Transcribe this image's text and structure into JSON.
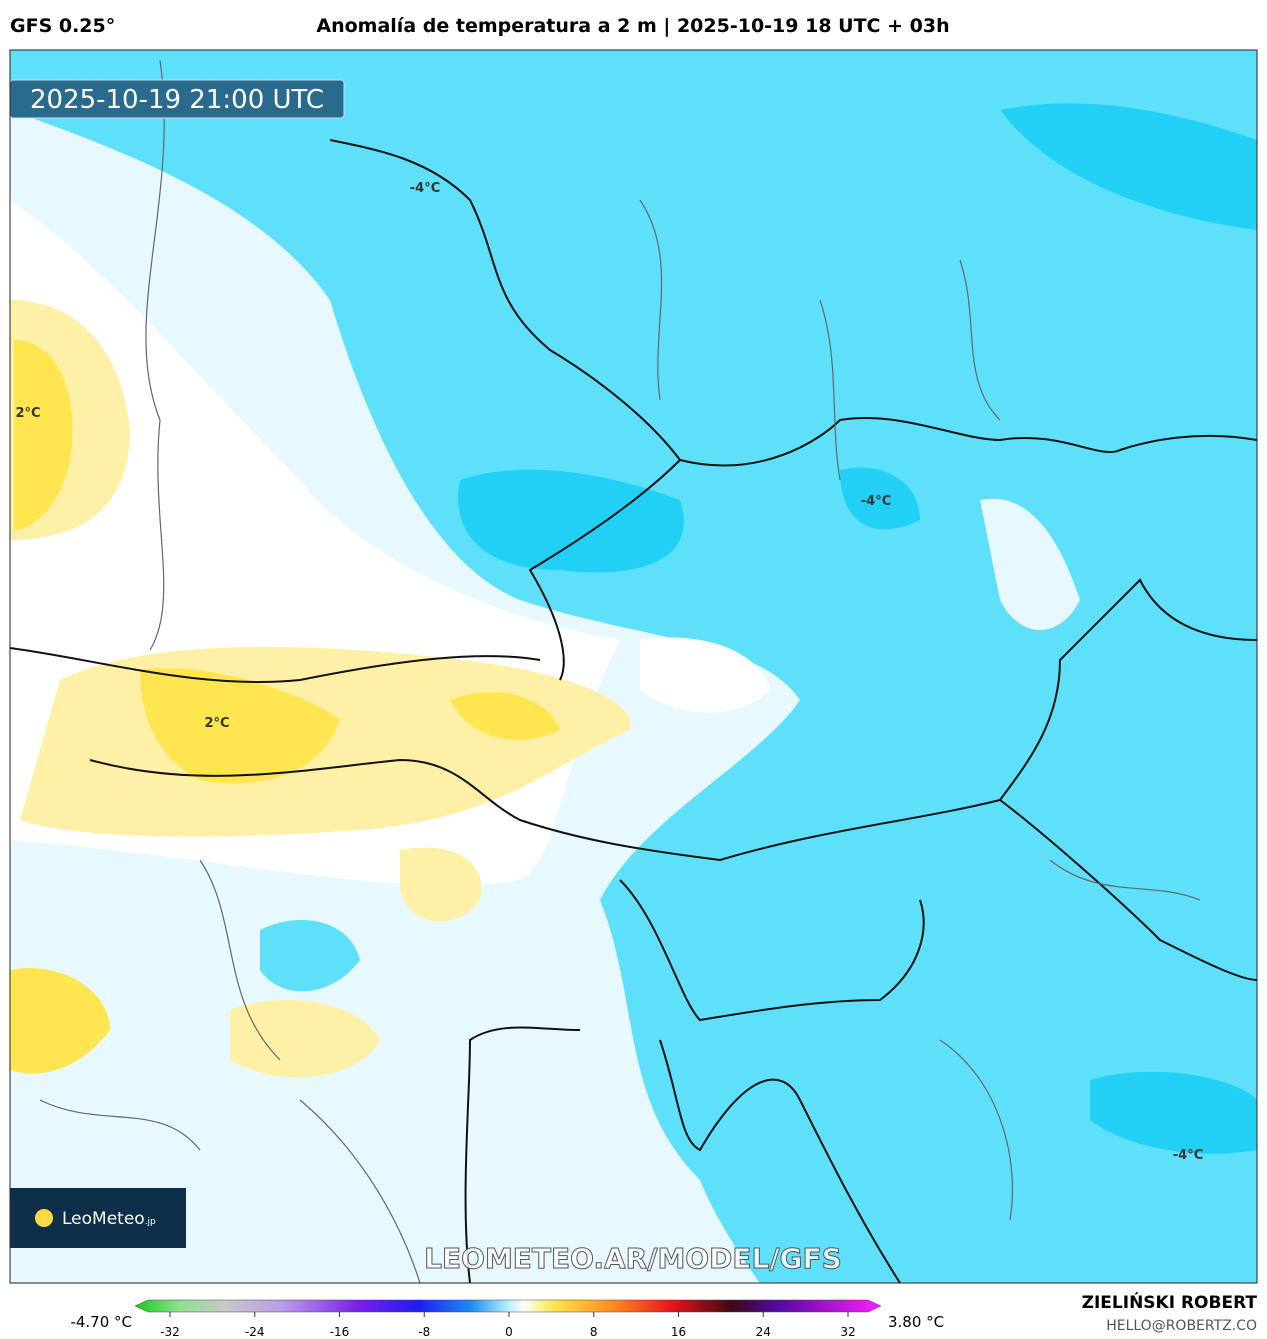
{
  "header": {
    "model": "GFS 0.25°",
    "title": "Anomalía de temperatura a 2 m | 2025-10-19 18 UTC + 03h"
  },
  "timestamp": "2025-10-19 21:00 UTC",
  "contour_labels": [
    "-4°C",
    "2°C",
    "-4°C",
    "2°C",
    "-4°C"
  ],
  "logo": {
    "name": "LeoMeteo",
    "suffix": ".jp"
  },
  "watermark": "LEOMETEO.AR/MODEL/GFS",
  "colorbar": {
    "min_label": "-4.70 °C",
    "max_label": "3.80 °C",
    "ticks": [
      -32,
      -24,
      -16,
      -8,
      0,
      8,
      16,
      24,
      32
    ]
  },
  "author": {
    "name": "ZIELIŃSKI ROBERT",
    "email": "HELLO@ROBERTZ.CO"
  }
}
